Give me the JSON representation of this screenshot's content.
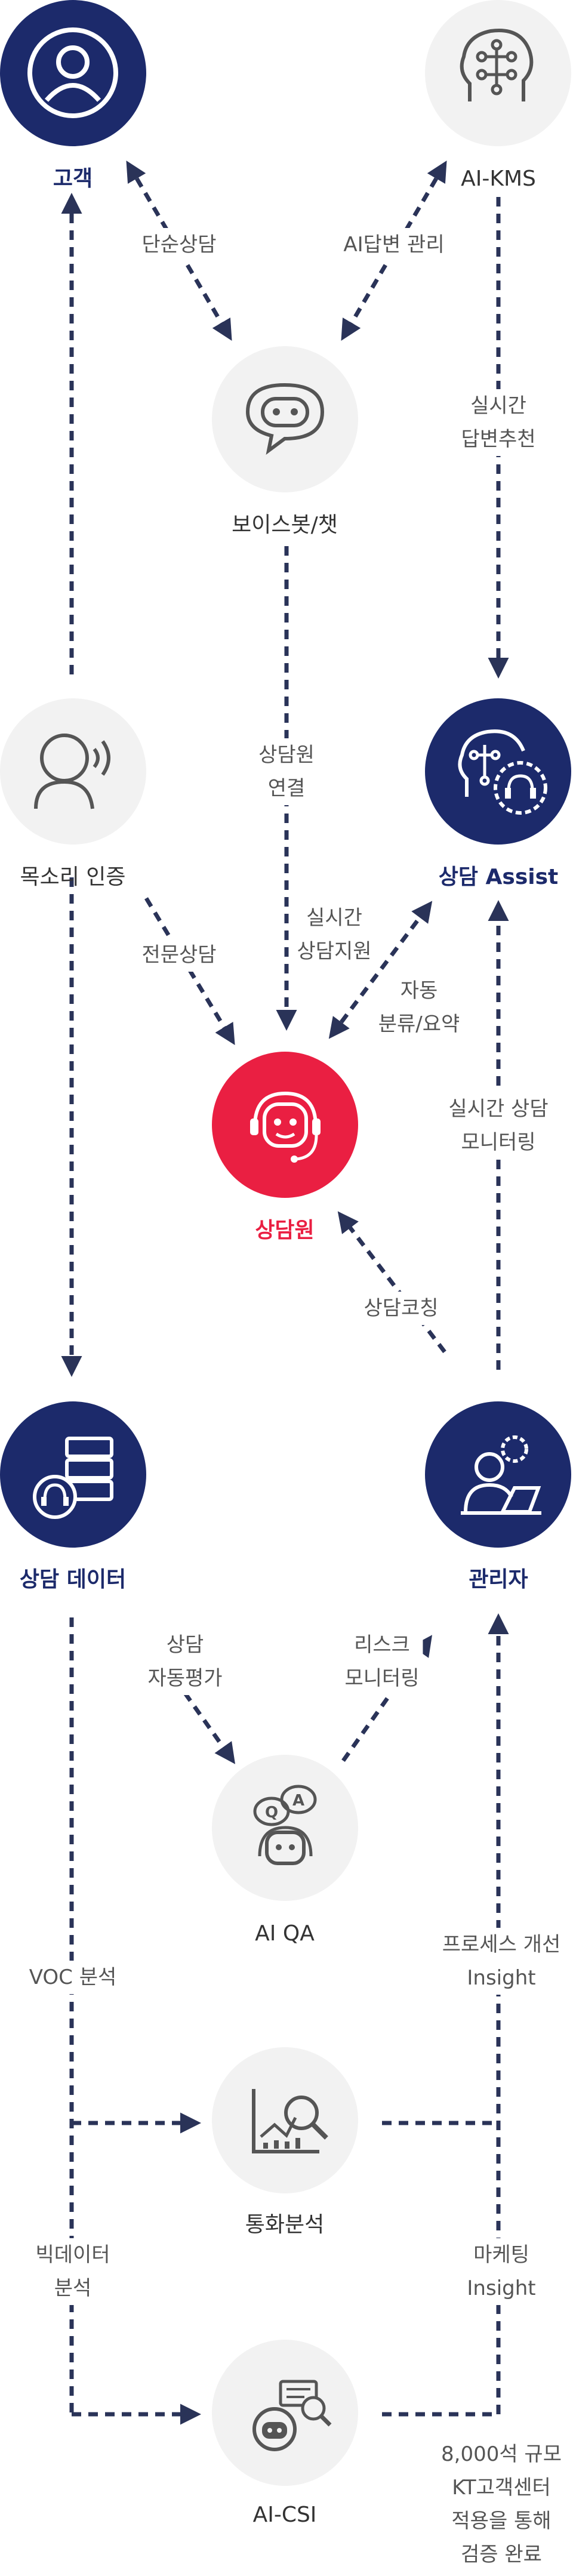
{
  "nodes": {
    "customer": {
      "label": "고객",
      "icon": "customer-icon"
    },
    "ai_kms": {
      "label": "AI-KMS",
      "icon": "brain-circuit-icon"
    },
    "voicebot": {
      "label": "보이스봇/챗",
      "icon": "chatbot-icon"
    },
    "voice_auth": {
      "label": "목소리 인증",
      "icon": "voice-speaking-icon"
    },
    "assist": {
      "label": "상담 Assist",
      "icon": "brain-headset-icon"
    },
    "agent": {
      "label": "상담원",
      "icon": "agent-headset-icon"
    },
    "consult_data": {
      "label": "상담 데이터",
      "icon": "server-headset-icon"
    },
    "manager": {
      "label": "관리자",
      "icon": "manager-gear-icon"
    },
    "ai_qa": {
      "label": "AI QA",
      "icon": "qa-bot-icon"
    },
    "call_analysis": {
      "label": "통화분석",
      "icon": "chart-magnifier-icon"
    },
    "ai_csi": {
      "label": "AI-CSI",
      "icon": "csi-bot-icon"
    }
  },
  "edges": {
    "simple_consult": [
      "단순상담"
    ],
    "ai_answer_mgmt": [
      "AI답변 관리"
    ],
    "realtime_answer": [
      "실시간",
      "답변추천"
    ],
    "agent_connect": [
      "상담원",
      "연결"
    ],
    "expert_consult": [
      "전문상담"
    ],
    "realtime_support": [
      "실시간",
      "상담지원"
    ],
    "auto_classify": [
      "자동",
      "분류/요약"
    ],
    "realtime_monitor": [
      "실시간 상담",
      "모니터링"
    ],
    "coaching": [
      "상담코칭"
    ],
    "auto_eval": [
      "상담",
      "자동평가"
    ],
    "risk_monitor": [
      "리스크",
      "모니터링"
    ],
    "voc_analysis": [
      "VOC 분석"
    ],
    "process_insight": [
      "프로세스 개선",
      "Insight"
    ],
    "bigdata_analysis": [
      "빅데이터",
      "분석"
    ],
    "marketing_insight": [
      "마케팅",
      "Insight"
    ],
    "validated": [
      "8,000석 규모",
      "KT고객센터",
      "적용을 통해",
      "검증 완료"
    ]
  },
  "colors": {
    "navy": "#1c2a6b",
    "red": "#ea1f42",
    "grey": "#f2f2f2",
    "line": "#2a3358"
  }
}
